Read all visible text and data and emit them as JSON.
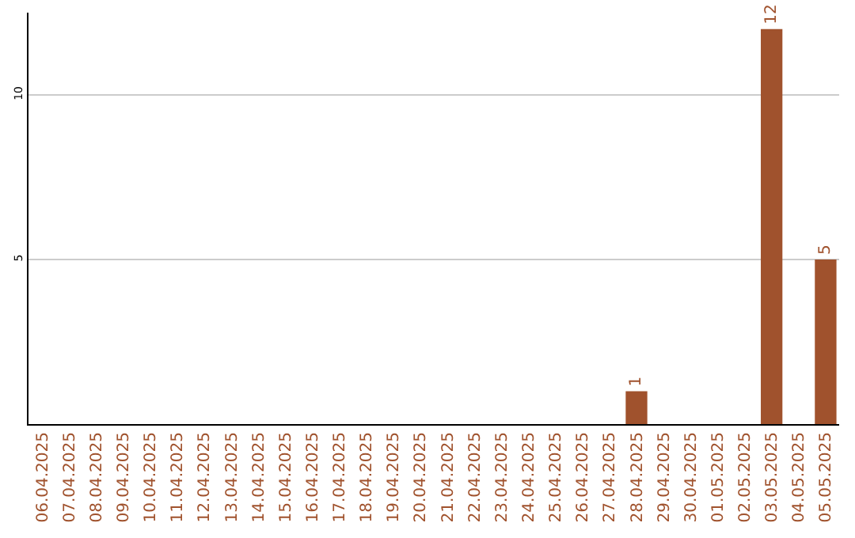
{
  "chart_data": {
    "type": "bar",
    "categories": [
      "06.04.2025",
      "07.04.2025",
      "08.04.2025",
      "09.04.2025",
      "10.04.2025",
      "11.04.2025",
      "12.04.2025",
      "13.04.2025",
      "14.04.2025",
      "15.04.2025",
      "16.04.2025",
      "17.04.2025",
      "18.04.2025",
      "19.04.2025",
      "20.04.2025",
      "21.04.2025",
      "22.04.2025",
      "23.04.2025",
      "24.04.2025",
      "25.04.2025",
      "26.04.2025",
      "27.04.2025",
      "28.04.2025",
      "29.04.2025",
      "30.04.2025",
      "01.05.2025",
      "02.05.2025",
      "03.05.2025",
      "04.05.2025",
      "05.05.2025"
    ],
    "values": [
      0,
      0,
      0,
      0,
      0,
      0,
      0,
      0,
      0,
      0,
      0,
      0,
      0,
      0,
      0,
      0,
      0,
      0,
      0,
      0,
      0,
      0,
      1,
      0,
      0,
      0,
      0,
      12,
      0,
      5
    ],
    "value_labels": [
      null,
      null,
      null,
      null,
      null,
      null,
      null,
      null,
      null,
      null,
      null,
      null,
      null,
      null,
      null,
      null,
      null,
      null,
      null,
      null,
      null,
      null,
      "1",
      null,
      null,
      null,
      null,
      "12",
      null,
      "5"
    ],
    "color": "#a0522d",
    "ylim": [
      0,
      12.5
    ],
    "yticks": [
      5,
      10
    ],
    "grid": "y",
    "legend": false
  }
}
